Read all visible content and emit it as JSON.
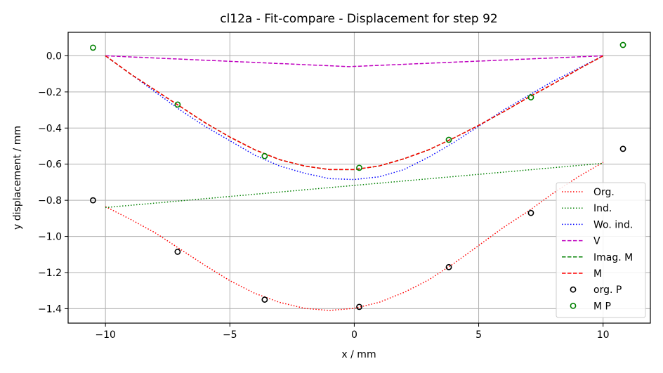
{
  "chart_data": {
    "type": "line",
    "title": "cl12a - Fit-compare - Displacement for step 92",
    "xlabel": "x / mm",
    "ylabel": "y displacement / mm",
    "xlim": [
      -11.5,
      11.9
    ],
    "ylim": [
      -1.48,
      0.13
    ],
    "xticks": [
      -10,
      -5,
      0,
      5,
      10
    ],
    "xtick_labels": [
      "−10",
      "−5",
      "0",
      "5",
      "10"
    ],
    "yticks": [
      0.0,
      -0.2,
      -0.4,
      -0.6,
      -0.8,
      -1.0,
      -1.2,
      -1.4
    ],
    "ytick_labels": [
      "0.0",
      "−0.2",
      "−0.4",
      "−0.6",
      "−0.8",
      "−1.0",
      "−1.2",
      "−1.4"
    ],
    "grid": true,
    "legend_position": "lower-right",
    "series": [
      {
        "name": "Org.",
        "color": "#ff0000",
        "style": "dotted",
        "kind": "line",
        "x": [
          -10,
          -9,
          -8,
          -7,
          -6,
          -5,
          -4,
          -3,
          -2,
          -1,
          0,
          1,
          2,
          3,
          4,
          5,
          6,
          7,
          8,
          9,
          10
        ],
        "y": [
          -0.835,
          -0.905,
          -0.98,
          -1.07,
          -1.16,
          -1.245,
          -1.315,
          -1.365,
          -1.398,
          -1.41,
          -1.398,
          -1.365,
          -1.31,
          -1.24,
          -1.15,
          -1.05,
          -0.95,
          -0.86,
          -0.76,
          -0.67,
          -0.59
        ]
      },
      {
        "name": "Ind.",
        "color": "#008000",
        "style": "dotted",
        "kind": "line",
        "x": [
          -10,
          10
        ],
        "y": [
          -0.84,
          -0.595
        ]
      },
      {
        "name": "Wo. ind.",
        "color": "#0000ff",
        "style": "dotted",
        "kind": "line",
        "x": [
          -10,
          -9,
          -8,
          -7,
          -6,
          -5,
          -4,
          -3,
          -2,
          -1,
          0,
          1,
          2,
          3,
          4,
          5,
          6,
          7,
          8,
          9,
          10
        ],
        "y": [
          0.0,
          -0.1,
          -0.2,
          -0.3,
          -0.39,
          -0.47,
          -0.55,
          -0.61,
          -0.65,
          -0.68,
          -0.685,
          -0.67,
          -0.63,
          -0.56,
          -0.48,
          -0.39,
          -0.3,
          -0.22,
          -0.14,
          -0.07,
          0.0
        ]
      },
      {
        "name": "V",
        "color": "#bf00bf",
        "style": "dashed",
        "kind": "line",
        "x": [
          -10,
          -0.2,
          10
        ],
        "y": [
          0.0,
          -0.06,
          0.0
        ]
      },
      {
        "name": "Imag. M",
        "color": "#008000",
        "style": "dashed",
        "kind": "line",
        "x": [
          -10,
          -9,
          -8,
          -7,
          -6,
          -5,
          -4,
          -3,
          -2,
          -1,
          0,
          1,
          2,
          3,
          4,
          5,
          6,
          7,
          8,
          9,
          10
        ],
        "y": [
          0.0,
          -0.1,
          -0.19,
          -0.28,
          -0.37,
          -0.45,
          -0.52,
          -0.575,
          -0.61,
          -0.63,
          -0.63,
          -0.61,
          -0.57,
          -0.52,
          -0.455,
          -0.385,
          -0.31,
          -0.23,
          -0.155,
          -0.075,
          0.0
        ]
      },
      {
        "name": "M",
        "color": "#ff0000",
        "style": "dashed",
        "kind": "line",
        "x": [
          -10,
          -9,
          -8,
          -7,
          -6,
          -5,
          -4,
          -3,
          -2,
          -1,
          0,
          1,
          2,
          3,
          4,
          5,
          6,
          7,
          8,
          9,
          10
        ],
        "y": [
          0.0,
          -0.1,
          -0.19,
          -0.28,
          -0.37,
          -0.45,
          -0.52,
          -0.575,
          -0.61,
          -0.63,
          -0.63,
          -0.61,
          -0.57,
          -0.52,
          -0.455,
          -0.385,
          -0.31,
          -0.23,
          -0.155,
          -0.075,
          0.0
        ]
      },
      {
        "name": "org. P",
        "color": "#000000",
        "kind": "marker",
        "x": [
          -10.5,
          -7.1,
          -3.6,
          0.2,
          3.8,
          7.1,
          10.8
        ],
        "y": [
          -0.8,
          -1.085,
          -1.35,
          -1.39,
          -1.17,
          -0.87,
          -0.515
        ]
      },
      {
        "name": "M P",
        "color": "#008000",
        "kind": "marker",
        "x": [
          -10.5,
          -7.1,
          -3.6,
          0.2,
          3.8,
          7.1,
          10.8
        ],
        "y": [
          0.045,
          -0.27,
          -0.555,
          -0.62,
          -0.465,
          -0.23,
          0.06
        ]
      }
    ]
  }
}
